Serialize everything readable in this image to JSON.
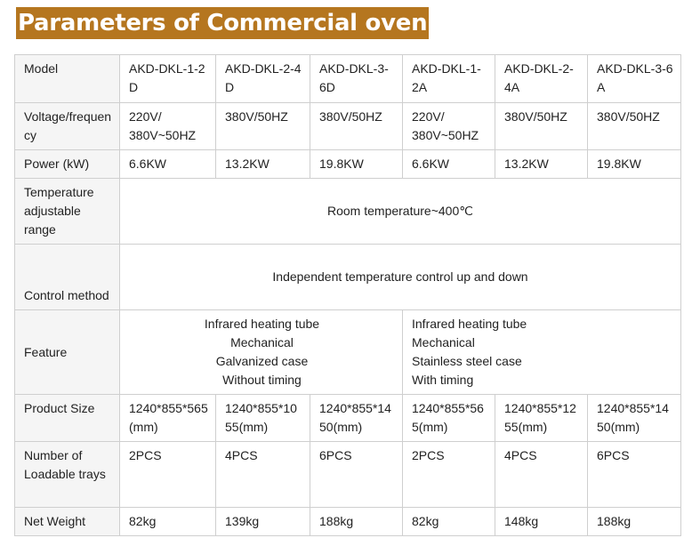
{
  "title": "Parameters of Commercial oven",
  "table": {
    "model_label": "Model",
    "models": [
      "AKD-DKL-1-2D",
      "AKD-DKL-2-4D",
      "AKD-DKL-3-6D",
      "AKD-DKL-1-2A",
      "AKD-DKL-2-4A",
      "AKD-DKL-3-6A"
    ],
    "voltage_label": "Voltage/frequency",
    "voltage": [
      "220V/ 380V~50HZ",
      "380V/50HZ",
      "380V/50HZ",
      "220V/ 380V~50HZ",
      "380V/50HZ",
      "380V/50HZ"
    ],
    "power_label": "Power (kW)",
    "power": [
      "6.6KW",
      "13.2KW",
      "19.8KW",
      "6.6KW",
      "13.2KW",
      "19.8KW"
    ],
    "temp_label": "Temperature adjustable range",
    "temp_value": "Room temperature~400℃",
    "control_label": "Control method",
    "control_value": "Independent temperature control up and down",
    "feature_label": "Feature",
    "feature_d": [
      "Infrared heating tube",
      "Mechanical",
      "Galvanized case",
      "Without timing"
    ],
    "feature_a": [
      "Infrared heating tube",
      "Mechanical",
      "Stainless steel case",
      "With timing"
    ],
    "size_label": "Product Size",
    "size": [
      "1240*855*565(mm)",
      "1240*855*1055(mm)",
      "1240*855*1450(mm)",
      "1240*855*565(mm)",
      "1240*855*1255(mm)",
      "1240*855*1450(mm)"
    ],
    "trays_label": "Number of Loadable trays",
    "trays": [
      "2PCS",
      "4PCS",
      "6PCS",
      "2PCS",
      "4PCS",
      "6PCS"
    ],
    "weight_label": "Net Weight",
    "weight": [
      "82kg",
      "139kg",
      "188kg",
      "82kg",
      "148kg",
      "188kg"
    ]
  }
}
